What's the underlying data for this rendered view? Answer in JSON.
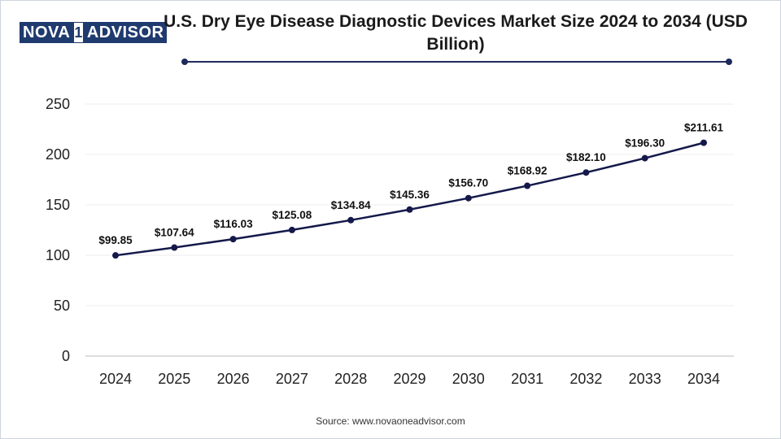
{
  "brand": {
    "part1": "NOVA",
    "part2": "1",
    "part3": "ADVISOR"
  },
  "title": "U.S. Dry Eye Disease Diagnostic Devices Market Size 2024 to 2034 (USD Billion)",
  "source": "Source: www.novaoneadvisor.com",
  "colors": {
    "line": "#14194a",
    "accent": "#1f2a5c",
    "grid": "#eeeeee",
    "brand": "#1f3a6e"
  },
  "chart_data": {
    "type": "line",
    "title": "U.S. Dry Eye Disease Diagnostic Devices Market Size 2024 to 2034 (USD Billion)",
    "xlabel": "",
    "ylabel": "",
    "categories": [
      "2024",
      "2025",
      "2026",
      "2027",
      "2028",
      "2029",
      "2030",
      "2031",
      "2032",
      "2033",
      "2034"
    ],
    "values": [
      99.85,
      107.64,
      116.03,
      125.08,
      134.84,
      145.36,
      156.7,
      168.92,
      182.1,
      196.3,
      211.61
    ],
    "data_labels": [
      "$99.85",
      "$107.64",
      "$116.03",
      "$125.08",
      "$134.84",
      "$145.36",
      "$156.70",
      "$168.92",
      "$182.10",
      "$196.30",
      "$211.61"
    ],
    "ylim": [
      0,
      250
    ],
    "yticks": [
      0,
      50,
      100,
      150,
      200,
      250
    ],
    "grid": true,
    "legend": "none"
  }
}
